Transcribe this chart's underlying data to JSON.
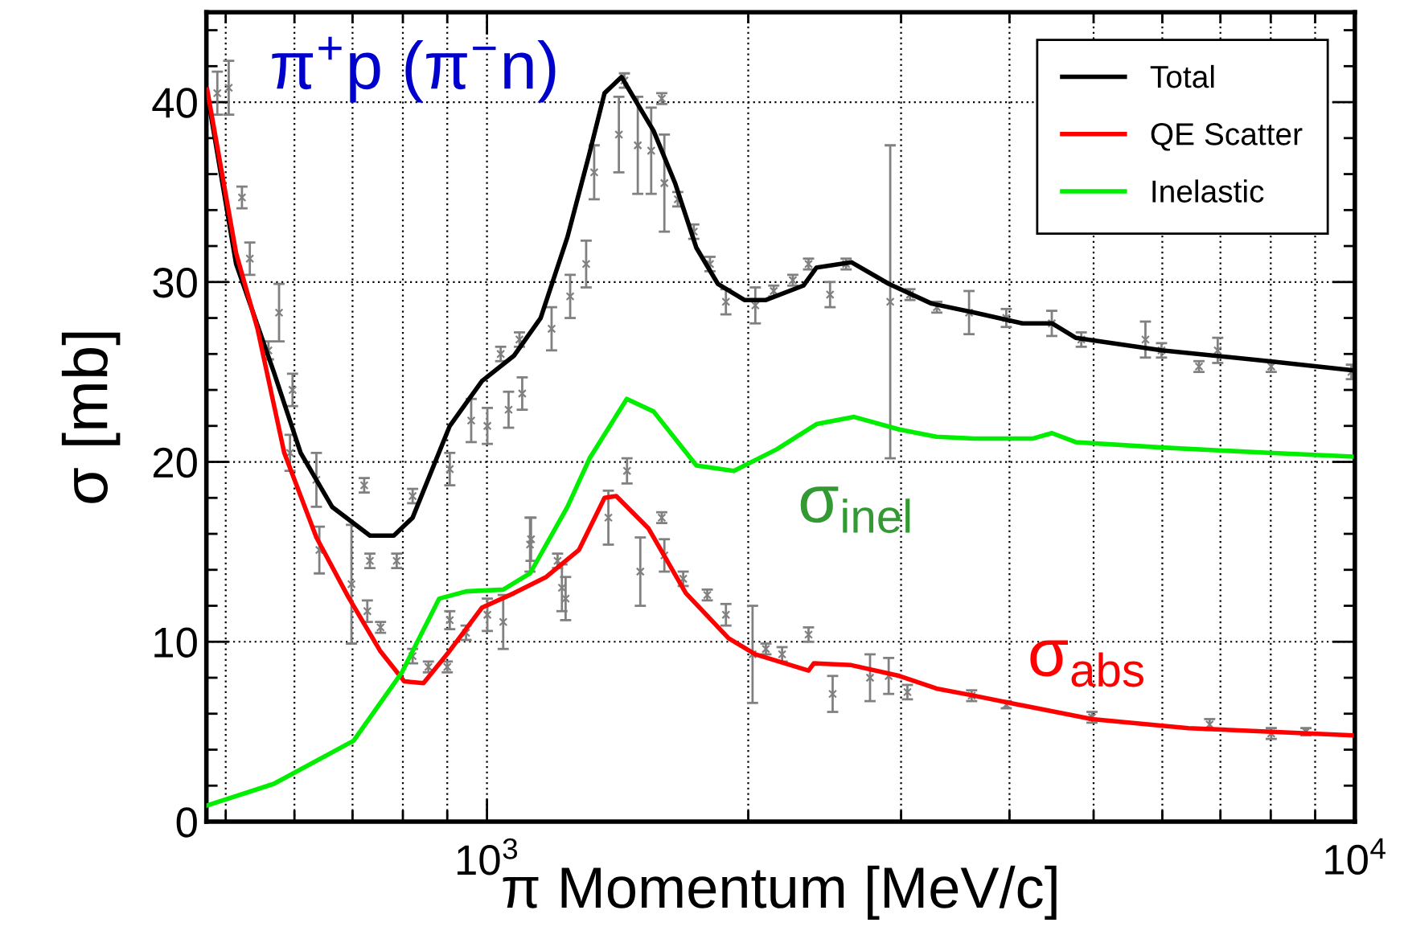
{
  "chart_data": {
    "type": "line",
    "xlabel": "π Momentum [MeV/c]",
    "ylabel": "σ [mb]",
    "log": "x",
    "xlim": [
      475,
      10000
    ],
    "ylim": [
      0,
      45
    ],
    "xticks": [
      {
        "value": 500,
        "label": null
      },
      {
        "value": 600,
        "label": null
      },
      {
        "value": 700,
        "label": null
      },
      {
        "value": 800,
        "label": null
      },
      {
        "value": 900,
        "label": null
      },
      {
        "value": 1000,
        "label": "10$^{3}$"
      },
      {
        "value": 2000,
        "label": null
      },
      {
        "value": 3000,
        "label": null
      },
      {
        "value": 4000,
        "label": null
      },
      {
        "value": 5000,
        "label": null
      },
      {
        "value": 6000,
        "label": null
      },
      {
        "value": 7000,
        "label": null
      },
      {
        "value": 8000,
        "label": null
      },
      {
        "value": 9000,
        "label": null
      },
      {
        "value": 10000,
        "label": "10$^{4}$"
      }
    ],
    "yticks": [
      0,
      {
        "value": 2,
        "label": null
      },
      {
        "value": 4,
        "label": null
      },
      {
        "value": 6,
        "label": null
      },
      {
        "value": 8,
        "label": null
      },
      10,
      {
        "value": 12,
        "label": null
      },
      {
        "value": 14,
        "label": null
      },
      {
        "value": 16,
        "label": null
      },
      {
        "value": 18,
        "label": null
      },
      20,
      {
        "value": 22,
        "label": null
      },
      {
        "value": 24,
        "label": null
      },
      {
        "value": 26,
        "label": null
      },
      {
        "value": 28,
        "label": null
      },
      30,
      {
        "value": 32,
        "label": null
      },
      {
        "value": 34,
        "label": null
      },
      {
        "value": 36,
        "label": null
      },
      {
        "value": 38,
        "label": null
      },
      40,
      {
        "value": 42,
        "label": null
      },
      {
        "value": 44,
        "label": null
      }
    ],
    "grid": true,
    "legend": "top right",
    "annotations": [
      "π$^{+}$p (π$^{−}$n)",
      "σ$_{inel}$",
      "σ$_{abs}$"
    ],
    "series": [
      {
        "name": null,
        "type": "scatter",
        "marker": "cross",
        "color": "#808080",
        "x": [
          489,
          504,
          522,
          533,
          576,
          560,
          597,
          593,
          636,
          641,
          698,
          722,
          728,
          754,
          733,
          787,
          821,
          821,
          856,
          900,
          906,
          906,
          946,
          959,
          1001,
          1059,
          1001,
          1044,
          1037,
          1090,
          1121,
          1098,
          1187,
          1220,
          1247,
          1301,
          1329,
          1440,
          1419,
          1492,
          1546,
          1590,
          1601,
          1659,
          1731,
          1807,
          1885,
          2038,
          2140,
          2251,
          2347,
          2485,
          2593,
          2915,
          3072,
          1124,
          1206,
          1232,
          1380,
          1450,
          1502,
          1590,
          1601,
          1683,
          1794,
          1885,
          2023,
          2096,
          2188,
          2347,
          2502,
          2763,
          2903,
          3051,
          3299,
          3593,
          3966,
          4475,
          4839,
          5737,
          5987,
          6613,
          6950,
          8010,
          9908,
          3618,
          3966,
          4979,
          6803,
          8010,
          8783
        ],
        "values": [
          40.5,
          40.8,
          34.7,
          31.3,
          28.3,
          26.2,
          24.0,
          20.5,
          19.0,
          15.1,
          13.2,
          18.7,
          11.7,
          10.8,
          14.5,
          14.5,
          18.1,
          9.2,
          8.6,
          8.6,
          19.6,
          11.2,
          10.5,
          22.3,
          22.0,
          22.9,
          11.5,
          11.1,
          26.0,
          26.8,
          15.4,
          23.8,
          27.4,
          13.0,
          29.2,
          31.0,
          36.1,
          41.2,
          38.2,
          37.6,
          37.3,
          40.2,
          35.5,
          34.6,
          32.8,
          31.0,
          28.9,
          28.7,
          29.5,
          30.1,
          31.0,
          29.3,
          31.0,
          28.9,
          29.3,
          15.7,
          14.5,
          12.4,
          16.9,
          19.5,
          13.9,
          16.9,
          14.8,
          13.5,
          12.6,
          11.5,
          9.3,
          9.6,
          9.3,
          10.4,
          7.1,
          8.0,
          8.1,
          7.2,
          28.6,
          28.3,
          28.0,
          27.7,
          26.8,
          26.8,
          26.2,
          25.3,
          26.2,
          25.3,
          25.0,
          7.0,
          6.5,
          5.8,
          5.4,
          4.9,
          5.0
        ],
        "errors": [
          1.2,
          1.5,
          0.6,
          0.9,
          1.6,
          0.5,
          0.9,
          1.0,
          1.5,
          1.3,
          3.3,
          0.4,
          0.6,
          0.3,
          0.4,
          0.4,
          0.4,
          0.4,
          0.3,
          0.3,
          0.9,
          0.5,
          0.4,
          1.2,
          1.0,
          1.0,
          0.9,
          1.5,
          0.4,
          0.4,
          1.5,
          0.9,
          1.2,
          1.3,
          1.2,
          1.3,
          1.5,
          0.4,
          2.1,
          2.7,
          2.4,
          0.3,
          2.7,
          0.4,
          0.4,
          0.4,
          0.7,
          1.0,
          0.3,
          0.3,
          0.3,
          0.7,
          0.3,
          8.7,
          0.3,
          1.2,
          0.4,
          1.2,
          1.5,
          0.7,
          1.9,
          0.3,
          0.9,
          0.4,
          0.3,
          0.6,
          2.7,
          0.3,
          0.4,
          0.4,
          1.0,
          1.3,
          1.0,
          0.4,
          0.3,
          1.2,
          0.5,
          0.7,
          0.4,
          1.0,
          0.4,
          0.3,
          0.7,
          0.3,
          0.4,
          0.3,
          0.2,
          0.3,
          0.3,
          0.3,
          0.2
        ]
      },
      {
        "name": "Total",
        "color": "#000000",
        "x": [
          476,
          514,
          568,
          610,
          663,
          733,
          781,
          821,
          906,
          987,
          1074,
          1153,
          1238,
          1310,
          1366,
          1429,
          1556,
          1647,
          1743,
          1845,
          1980,
          2096,
          2315,
          2397,
          2629,
          2903,
          3253,
          3642,
          4141,
          4477,
          4768,
          5987,
          7954,
          9908
        ],
        "values": [
          40.5,
          31.0,
          25.0,
          20.5,
          17.5,
          15.9,
          15.9,
          16.9,
          22.0,
          24.5,
          25.9,
          28.0,
          32.5,
          37.0,
          40.5,
          41.4,
          38.4,
          35.5,
          31.9,
          29.9,
          29.0,
          29.0,
          29.8,
          30.8,
          31.1,
          29.9,
          28.8,
          28.3,
          27.7,
          27.7,
          26.9,
          26.2,
          25.6,
          25.1
        ]
      },
      {
        "name": "QE Scatter",
        "color": "#ff0000",
        "x": [
          476,
          514,
          544,
          584,
          636,
          692,
          753,
          803,
          845,
          906,
          987,
          1074,
          1170,
          1276,
          1366,
          1409,
          1535,
          1695,
          1898,
          2038,
          2347,
          2380,
          2629,
          2987,
          3295,
          3642,
          4200,
          4979,
          6427,
          9908
        ],
        "values": [
          40.7,
          31.6,
          27.4,
          20.5,
          15.8,
          12.5,
          9.5,
          7.8,
          7.7,
          9.5,
          11.9,
          12.7,
          13.6,
          15.1,
          18.0,
          18.1,
          16.3,
          12.7,
          10.2,
          9.3,
          8.4,
          8.8,
          8.7,
          8.1,
          7.4,
          7.0,
          6.4,
          5.7,
          5.2,
          4.8
        ]
      },
      {
        "name": "Inelastic",
        "color": "#00ee00",
        "x": [
          476,
          568,
          702,
          798,
          881,
          946,
          1044,
          1121,
          1238,
          1313,
          1449,
          1556,
          1743,
          1925,
          2157,
          2397,
          2649,
          2987,
          3295,
          3642,
          4258,
          4477,
          4768,
          5987,
          7954,
          9908
        ],
        "values": [
          0.9,
          2.1,
          4.5,
          8.3,
          12.4,
          12.8,
          12.9,
          13.8,
          17.5,
          20.2,
          23.5,
          22.8,
          19.8,
          19.5,
          20.7,
          22.1,
          22.5,
          21.8,
          21.4,
          21.3,
          21.3,
          21.6,
          21.1,
          20.8,
          20.5,
          20.3
        ]
      }
    ]
  }
}
